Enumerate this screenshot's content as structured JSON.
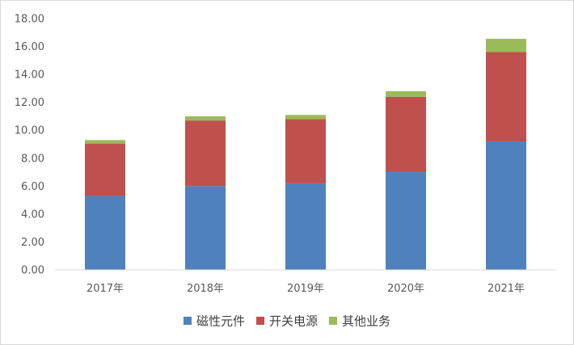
{
  "chart_data": {
    "type": "bar",
    "stacked": true,
    "categories": [
      "2017年",
      "2018年",
      "2019年",
      "2020年",
      "2021年"
    ],
    "series": [
      {
        "name": "磁性元件",
        "color": "#4F81BD",
        "values": [
          5.3,
          6.0,
          6.2,
          7.0,
          9.2
        ]
      },
      {
        "name": "开关电源",
        "color": "#C0504D",
        "values": [
          3.75,
          4.7,
          4.6,
          5.4,
          6.4
        ]
      },
      {
        "name": "其他业务",
        "color": "#9BBB59",
        "values": [
          0.25,
          0.3,
          0.3,
          0.4,
          0.95
        ]
      }
    ],
    "ylim": [
      0,
      18
    ],
    "yticks": [
      "0.00",
      "2.00",
      "4.00",
      "6.00",
      "8.00",
      "10.00",
      "12.00",
      "14.00",
      "16.00",
      "18.00"
    ],
    "grid": false,
    "legend_position": "bottom",
    "title": "",
    "xlabel": "",
    "ylabel": ""
  }
}
